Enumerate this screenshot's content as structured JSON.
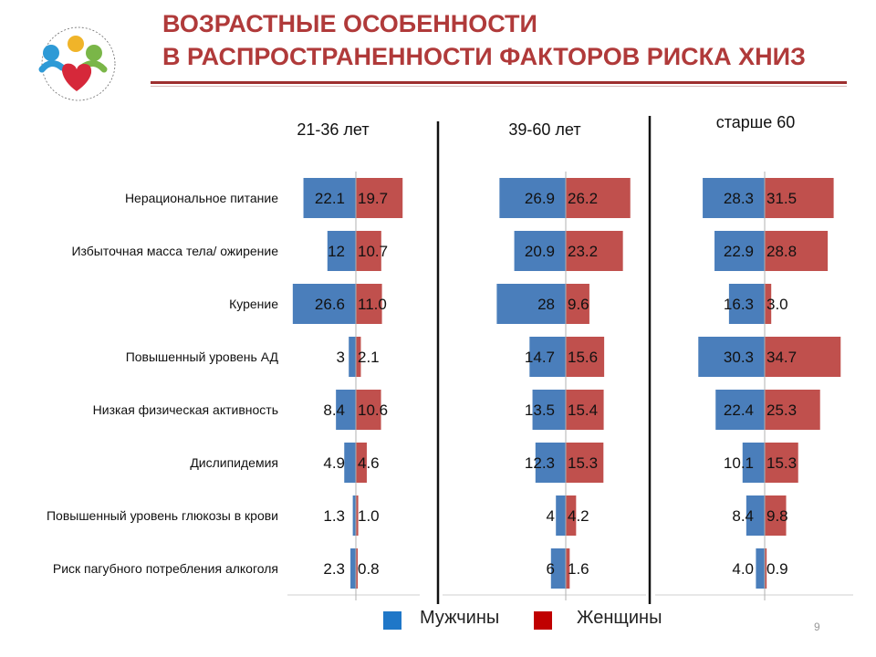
{
  "title": {
    "line1": "ВОЗРАСТНЫЕ ОСОБЕННОСТИ",
    "line2": "В РАСПРОСТРАНЕННОСТИ ФАКТОРОВ РИСКА ХНИЗ"
  },
  "colors": {
    "men": "#4a7ebb",
    "women": "#c0504d",
    "title": "#b03a3a",
    "legend_men": "#1f77c8",
    "legend_women": "#c00000"
  },
  "logo": {
    "icon": "family-heart-logo"
  },
  "legend": {
    "men": "Мужчины",
    "women": "Женщины"
  },
  "page_number": "9",
  "chart_data": {
    "type": "bar",
    "orientation": "horizontal-diverging",
    "categories": [
      "Нерациональное питание",
      "Избыточная масса тела/ ожирение",
      "Курение",
      "Повышенный уровень АД",
      "Низкая физическая активность",
      "Дислипидемия",
      "Повышенный уровень глюкозы в крови",
      "Риск пагубного потребления алкоголя"
    ],
    "panels": [
      {
        "label": "21-36 лет",
        "men_labels": [
          "22.1",
          "12",
          "26.6",
          "3",
          "8.4",
          "4.9",
          "1.3",
          "2.3"
        ],
        "women_labels": [
          "19.7",
          "10.7",
          "11.0",
          "2.1",
          "10.6",
          "4.6",
          "1.0",
          "0.8"
        ],
        "men": [
          22.1,
          12,
          26.6,
          3,
          8.4,
          4.9,
          1.3,
          2.3
        ],
        "women": [
          19.7,
          10.7,
          11.0,
          2.1,
          10.6,
          4.6,
          1.0,
          0.8
        ]
      },
      {
        "label": "39-60 лет",
        "men_labels": [
          "26.9",
          "20.9",
          "28",
          "14.7",
          "13.5",
          "12.3",
          "4",
          "6"
        ],
        "women_labels": [
          "26.2",
          "23.2",
          "9.6",
          "15.6",
          "15.4",
          "15.3",
          "4.2",
          "1.6"
        ],
        "men": [
          26.9,
          20.9,
          28,
          14.7,
          13.5,
          12.3,
          4,
          6
        ],
        "women": [
          26.2,
          23.2,
          9.6,
          15.6,
          15.4,
          15.3,
          4.2,
          1.6
        ]
      },
      {
        "label": "старше 60",
        "men_labels": [
          "28.3",
          "22.9",
          "16.3",
          "30.3",
          "22.4",
          "10.1",
          "8.4",
          "4.0"
        ],
        "women_labels": [
          "31.5",
          "28.8",
          "3.0",
          "34.7",
          "25.3",
          "15.3",
          "9.8",
          "0.9"
        ],
        "men": [
          28.3,
          22.9,
          16.3,
          30.3,
          22.4,
          10.1,
          8.4,
          4.0
        ],
        "women": [
          31.5,
          28.8,
          3.0,
          34.7,
          25.3,
          15.3,
          9.8,
          0.9
        ]
      }
    ],
    "series": [
      {
        "name": "Мужчины"
      },
      {
        "name": "Женщины"
      }
    ],
    "legend_position": "bottom",
    "grid": false
  }
}
